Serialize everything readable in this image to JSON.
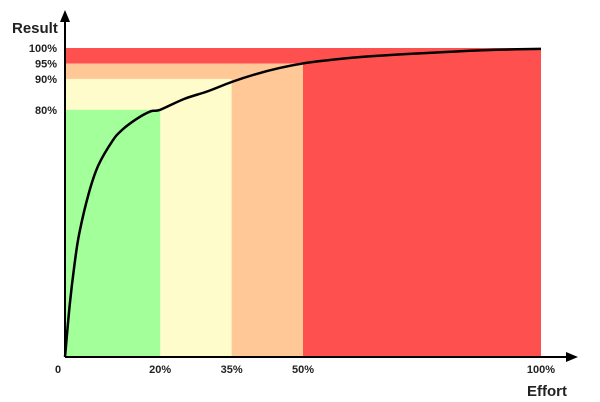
{
  "chart_data": {
    "type": "line",
    "title": "",
    "ylabel": "Result",
    "xlabel": "Effort",
    "xlim": [
      0,
      100
    ],
    "ylim": [
      0,
      100
    ],
    "x_ticks": [
      {
        "value": 0,
        "label": "0"
      },
      {
        "value": 20,
        "label": "20%"
      },
      {
        "value": 35,
        "label": "35%"
      },
      {
        "value": 50,
        "label": "50%"
      },
      {
        "value": 100,
        "label": "100%"
      }
    ],
    "y_ticks": [
      {
        "value": 80,
        "label": "80%"
      },
      {
        "value": 90,
        "label": "90%"
      },
      {
        "value": 95,
        "label": "95%"
      },
      {
        "value": 100,
        "label": "100%"
      }
    ],
    "regions": [
      {
        "x_end": 20,
        "y_end": 80,
        "color": "#a2ff9a"
      },
      {
        "x_end": 35,
        "y_end": 90,
        "color": "#fffccb"
      },
      {
        "x_end": 50,
        "y_end": 95,
        "color": "#ffc896"
      },
      {
        "x_end": 100,
        "y_end": 100,
        "color": "#ff5050"
      }
    ],
    "series": [
      {
        "x": [
          0,
          1,
          2,
          3,
          5,
          7,
          10,
          12,
          15,
          18,
          20,
          25,
          30,
          35,
          40,
          45,
          50,
          55,
          60,
          65,
          70,
          75,
          80,
          85,
          90,
          95,
          100
        ],
        "y": [
          0,
          17,
          30,
          40,
          53,
          62,
          70,
          73.5,
          77,
          79.5,
          80,
          83.5,
          86,
          89,
          91.5,
          93.5,
          95,
          96,
          96.8,
          97.4,
          97.9,
          98.3,
          98.7,
          99.1,
          99.4,
          99.6,
          99.7
        ],
        "color": "#000000"
      }
    ],
    "grid": false,
    "legend": "none"
  }
}
